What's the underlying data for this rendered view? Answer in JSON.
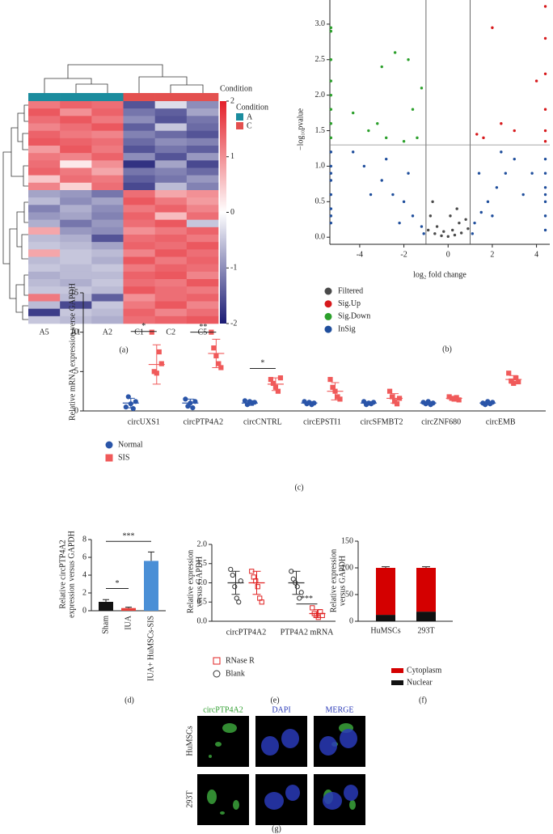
{
  "chart_data": [
    {
      "type": "heatmap",
      "label": "(a)",
      "columns": [
        "A5",
        "A1",
        "A2",
        "C1",
        "C2",
        "C5"
      ],
      "column_groups": [
        "A",
        "A",
        "A",
        "C",
        "C",
        "C"
      ],
      "condition": {
        "title": "Condition",
        "names": [
          "A",
          "C"
        ],
        "colors": [
          "#1b8c9e",
          "#e3504f"
        ]
      },
      "clim": [
        -2,
        2
      ],
      "colorbar_ticks": [
        2,
        1,
        0,
        -1,
        -2
      ],
      "colors": {
        "low": "#1b1b74",
        "mid": "#ffffff",
        "high": "#e4202a"
      },
      "values": [
        [
          1.2,
          1.4,
          1.3,
          -1.5,
          -0.3,
          -1.0
        ],
        [
          1.5,
          1.0,
          1.4,
          -1.2,
          -1.4,
          -0.8
        ],
        [
          1.3,
          1.5,
          1.2,
          -1.0,
          -1.5,
          -1.2
        ],
        [
          1.1,
          1.3,
          1.5,
          -1.4,
          -0.5,
          -1.3
        ],
        [
          1.4,
          1.2,
          1.1,
          -1.1,
          -1.3,
          -1.5
        ],
        [
          1.5,
          1.4,
          1.3,
          -1.3,
          -1.0,
          -1.1
        ],
        [
          0.9,
          1.5,
          1.2,
          -1.5,
          -1.2,
          -1.4
        ],
        [
          1.2,
          1.1,
          1.4,
          -1.0,
          -1.5,
          -0.9
        ],
        [
          1.3,
          0.2,
          1.0,
          -1.8,
          -0.8,
          -1.6
        ],
        [
          1.4,
          1.2,
          0.8,
          -1.2,
          -1.1,
          -1.3
        ],
        [
          0.5,
          1.3,
          1.2,
          -1.4,
          -1.2,
          -0.9
        ],
        [
          1.1,
          0.4,
          1.3,
          -1.6,
          -0.6,
          -1.1
        ],
        [
          -0.8,
          -0.9,
          -1.2,
          1.3,
          0.8,
          1.0
        ],
        [
          -0.6,
          -1.0,
          -0.8,
          1.5,
          1.2,
          0.9
        ],
        [
          -1.1,
          -0.7,
          -1.0,
          1.2,
          1.4,
          1.1
        ],
        [
          -0.9,
          -0.8,
          -1.1,
          1.4,
          0.6,
          1.3
        ],
        [
          -0.7,
          -1.2,
          -0.9,
          1.3,
          1.5,
          -0.5
        ],
        [
          0.8,
          -0.9,
          -1.0,
          1.0,
          1.2,
          1.4
        ],
        [
          -0.6,
          -0.7,
          -1.5,
          1.3,
          1.4,
          1.2
        ],
        [
          -0.5,
          -0.6,
          -0.8,
          1.4,
          1.3,
          1.5
        ],
        [
          0.8,
          -0.5,
          -0.6,
          1.1,
          1.5,
          1.3
        ],
        [
          -0.6,
          -0.5,
          -0.7,
          1.5,
          1.2,
          1.4
        ],
        [
          -0.5,
          -0.6,
          -0.5,
          1.2,
          1.4,
          1.3
        ],
        [
          -0.7,
          -0.6,
          -0.6,
          1.4,
          1.5,
          1.1
        ],
        [
          -0.6,
          -0.7,
          -0.5,
          1.3,
          1.2,
          1.5
        ],
        [
          -0.5,
          -0.5,
          -0.6,
          1.5,
          1.3,
          1.2
        ],
        [
          1.2,
          -0.6,
          -1.4,
          1.0,
          1.3,
          1.4
        ],
        [
          -0.6,
          -1.6,
          -0.5,
          1.2,
          1.5,
          1.1
        ],
        [
          -1.7,
          -0.5,
          -0.6,
          1.4,
          1.1,
          1.3
        ],
        [
          -0.5,
          -0.6,
          -0.7,
          1.3,
          1.4,
          1.5
        ]
      ]
    },
    {
      "type": "volcano",
      "label": "(b)",
      "xlabel": "log₂ fold change",
      "ylabel": "−log₁₀pvalue",
      "xlim": [
        -5.35,
        4.6
      ],
      "ylim": [
        -0.1,
        3.34
      ],
      "xticks": [
        -4,
        -2,
        0,
        2,
        4
      ],
      "yticks": [
        {
          "value": 0,
          "label": "0.0"
        },
        {
          "value": 0.5,
          "label": "0.5"
        },
        {
          "value": 1,
          "label": "1.0"
        },
        {
          "value": 1.5,
          "label": "1.5"
        },
        {
          "value": 2,
          "label": "2.0"
        },
        {
          "value": 2.5,
          "label": "2.5"
        },
        {
          "value": 3,
          "label": "3.0"
        }
      ],
      "vlines": [
        -1,
        1
      ],
      "hline": 1.3,
      "series": [
        {
          "name": "Filtered",
          "color": "#4a4a4a",
          "x": [
            -0.9,
            -0.6,
            -0.3,
            0,
            0.3,
            0.6,
            0.9,
            -0.8,
            0.8,
            -0.5,
            0.5,
            -0.2,
            0.2,
            0.4,
            -0.7,
            0.1
          ],
          "y": [
            0.1,
            0.05,
            0.02,
            0.01,
            0.03,
            0.06,
            0.12,
            0.3,
            0.25,
            0.15,
            0.2,
            0.08,
            0.1,
            0.4,
            0.5,
            0.3
          ]
        },
        {
          "name": "Sig.Up",
          "color": "#d7191c",
          "x": [
            4.4,
            4.4,
            4.4,
            4.4,
            4.4,
            2.0,
            4.0,
            2.4,
            1.6,
            1.3,
            3.0,
            4.4
          ],
          "y": [
            3.25,
            2.8,
            2.3,
            1.8,
            1.5,
            2.95,
            2.2,
            1.6,
            1.4,
            1.45,
            1.5,
            1.35
          ]
        },
        {
          "name": "Sig.Down",
          "color": "#2ca02c",
          "x": [
            -5.3,
            -5.3,
            -5.3,
            -5.3,
            -5.3,
            -5.3,
            -5.3,
            -5.3,
            -2.4,
            -3.0,
            -1.8,
            -1.2,
            -4.3,
            -3.2,
            -2.8,
            -2.0,
            -1.4,
            -3.6,
            -1.6
          ],
          "y": [
            2.95,
            2.9,
            2.5,
            2.2,
            2.0,
            1.8,
            1.6,
            1.4,
            2.6,
            2.4,
            2.5,
            2.1,
            1.75,
            1.6,
            1.4,
            1.35,
            1.4,
            1.5,
            1.8
          ]
        },
        {
          "name": "InSig",
          "color": "#1f4e9c",
          "x": [
            -5.3,
            -5.3,
            -5.3,
            -5.3,
            -5.3,
            -5.3,
            -5.3,
            -5.3,
            4.4,
            4.4,
            4.4,
            4.4,
            4.4,
            4.4,
            4.4,
            -3.8,
            -3.0,
            -2.5,
            -2.0,
            -1.6,
            -1.2,
            -2.8,
            -3.5,
            -1.8,
            -2.2,
            1.2,
            1.5,
            1.8,
            2.2,
            2.6,
            3.0,
            1.4,
            2.0,
            3.4,
            2.4,
            -1.1,
            1.1,
            -4.3,
            3.8
          ],
          "y": [
            1.2,
            1.0,
            0.8,
            0.6,
            0.4,
            0.2,
            0.9,
            0.3,
            1.1,
            0.9,
            0.7,
            0.5,
            0.3,
            0.1,
            0.6,
            1.0,
            0.8,
            0.6,
            0.5,
            0.3,
            0.15,
            1.1,
            0.6,
            0.9,
            0.2,
            0.2,
            0.35,
            0.5,
            0.7,
            0.9,
            1.1,
            0.9,
            0.3,
            0.6,
            1.2,
            0.05,
            0.05,
            1.2,
            0.9
          ]
        }
      ]
    },
    {
      "type": "dot_plot",
      "label": "(c)",
      "ylabel": "Relative mRNA expression verse GAPDH",
      "categories": [
        "circUXS1",
        "circPTP4A2",
        "circCNTRL",
        "circEPSTI1",
        "circSFMBT2",
        "circZNF680",
        "circEMB"
      ],
      "ylim": [
        0,
        15
      ],
      "yticks": [
        0,
        5,
        10,
        15
      ],
      "series": [
        {
          "name": "Normal",
          "color": "#2a55a8",
          "marker": "circle",
          "filled": true,
          "values": [
            [
              0.5,
              1.8,
              0.9,
              0.3,
              1.2
            ],
            [
              1.5,
              0.6,
              1.0,
              0.4,
              1.2
            ],
            [
              1.3,
              0.8,
              1.2,
              1.0,
              1.1
            ],
            [
              1.2,
              0.9,
              1.1,
              0.8,
              1.0
            ],
            [
              1.2,
              0.8,
              1.0,
              0.9,
              1.1
            ],
            [
              1.1,
              0.9,
              1.2,
              0.8,
              1.0
            ],
            [
              1.0,
              0.8,
              1.2,
              0.9,
              1.1
            ]
          ],
          "means": [
            1.0,
            1.0,
            1.0,
            1.0,
            1.0,
            1.0,
            1.0
          ],
          "errors": [
            0.6,
            0.5,
            0.3,
            0.2,
            0.2,
            0.2,
            0.2
          ]
        },
        {
          "name": "SIS",
          "color": "#f05a5a",
          "marker": "square",
          "filled": true,
          "values": [
            [
              10,
              5,
              4.8,
              7.5,
              6
            ],
            [
              10,
              8,
              7,
              6,
              5.5
            ],
            [
              4,
              3.5,
              3.0,
              2.5,
              4.2
            ],
            [
              4,
              3,
              2.5,
              1.8,
              1.5
            ],
            [
              2.5,
              1.8,
              1.2,
              0.9,
              1.6
            ],
            [
              1.8,
              1.6,
              1.5,
              1.7,
              1.4
            ],
            [
              4.8,
              3.8,
              3.5,
              4.2,
              3.7
            ]
          ],
          "means": [
            5.9,
            7.3,
            3.4,
            2.5,
            1.6,
            1.6,
            4.0
          ],
          "errors": [
            2.5,
            1.8,
            0.8,
            1.1,
            0.6,
            0.2,
            0.5
          ]
        }
      ],
      "annotations": [
        {
          "text": "*",
          "category": 0,
          "y": 10.1
        },
        {
          "text": "**",
          "category": 1,
          "y": 10.0
        },
        {
          "text": "*",
          "category": 2,
          "y": 5.4
        }
      ]
    },
    {
      "type": "bar",
      "label": "(d)",
      "ylabel": [
        "Relative circPTP4A2",
        "expression versus GAPDH"
      ],
      "categories": [
        "Sham",
        "IUA",
        "IUA+ HuMSCs-SIS"
      ],
      "values": [
        1.0,
        0.3,
        5.6
      ],
      "errors": [
        0.25,
        0.1,
        1.0
      ],
      "colors": [
        "#111111",
        "#e8403a",
        "#4a8fd6"
      ],
      "ylim": [
        0,
        8
      ],
      "yticks": [
        0,
        2,
        4,
        6,
        8
      ],
      "annotations": [
        {
          "text": "*",
          "from": 0,
          "to": 1,
          "y": 2.5
        },
        {
          "text": "***",
          "from": 0,
          "to": 2,
          "y": 7.8
        }
      ]
    },
    {
      "type": "dot_plot",
      "label": "(e)",
      "ylabel": [
        "Relative expression",
        "versus GAPDH"
      ],
      "categories": [
        "circPTP4A2",
        "PTP4A2 mRNA"
      ],
      "ylim": [
        0,
        2
      ],
      "yticks": [
        {
          "value": 0,
          "label": "0.0"
        },
        {
          "value": 0.5,
          "label": "0.5"
        },
        {
          "value": 1,
          "label": "1.0"
        },
        {
          "value": 1.5,
          "label": "1.5"
        },
        {
          "value": 2,
          "label": "2.0"
        }
      ],
      "series": [
        {
          "name": "Blank",
          "color": "#333333",
          "marker": "circle",
          "filled": false,
          "values": [
            [
              1.35,
              1.2,
              0.9,
              0.6,
              0.5,
              1.05
            ],
            [
              1.3,
              1.1,
              1.0,
              0.9,
              0.6,
              0.75
            ]
          ],
          "means": [
            1.0,
            1.0
          ],
          "errors": [
            0.3,
            0.3
          ]
        },
        {
          "name": "RNase R",
          "color": "#e02020",
          "marker": "square",
          "filled": false,
          "values": [
            [
              1.3,
              1.15,
              1.05,
              0.9,
              0.6,
              0.5
            ],
            [
              0.35,
              0.2,
              0.15,
              0.1,
              0.25,
              0.15
            ]
          ],
          "means": [
            1.0,
            0.2
          ],
          "errors": [
            0.3,
            0.1
          ]
        }
      ],
      "annotations": [
        {
          "text": "***",
          "category": 1,
          "y": 0.45
        }
      ]
    },
    {
      "type": "stacked_bar",
      "label": "(f)",
      "ylabel": [
        "Relative expression",
        "versus GAPDH"
      ],
      "categories": [
        "HuMSCs",
        "293T"
      ],
      "ylim": [
        0,
        150
      ],
      "yticks": [
        0,
        50,
        100,
        150
      ],
      "series": [
        {
          "name": "Nuclear",
          "color": "#111111",
          "values": [
            12,
            18
          ]
        },
        {
          "name": "Cytoplasm",
          "color": "#d40000",
          "values": [
            88,
            82
          ],
          "errors": [
            2,
            2
          ]
        }
      ]
    }
  ],
  "image_panel": {
    "label": "(g)",
    "columns": [
      "circPTP4A2",
      "DAPI",
      "MERGE"
    ],
    "rows": [
      "HuMSCs",
      "293T"
    ]
  }
}
